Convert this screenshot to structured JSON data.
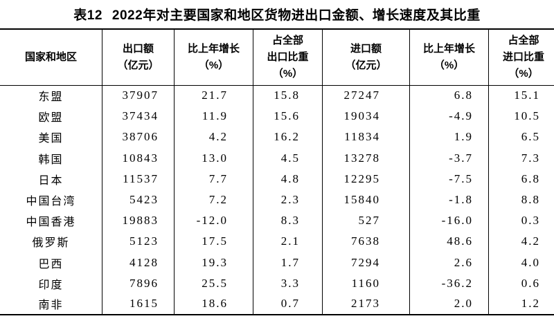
{
  "page": {
    "title_label": "表12",
    "title_text": "2022年对主要国家和地区货物进出口金额、增长速度及其比重"
  },
  "colors": {
    "text": "#000000",
    "background": "#ffffff",
    "border": "#000000"
  },
  "table": {
    "header": {
      "region": [
        "国家和地区"
      ],
      "export_value": [
        "出口额",
        "（亿元）"
      ],
      "export_growth": [
        "比上年增长",
        "（%）"
      ],
      "export_share": [
        "占全部",
        "出口比重",
        "（%）"
      ],
      "import_value": [
        "进口额",
        "（亿元）"
      ],
      "import_growth": [
        "比上年增长",
        "（%）"
      ],
      "import_share": [
        "占全部",
        "进口比重",
        "（%）"
      ]
    },
    "rows": [
      {
        "region": "东盟",
        "export_value": "37907",
        "export_growth": "21.7",
        "export_share": "15.8",
        "import_value": "27247",
        "import_growth": "6.8",
        "import_share": "15.1"
      },
      {
        "region": "欧盟",
        "export_value": "37434",
        "export_growth": "11.9",
        "export_share": "15.6",
        "import_value": "19034",
        "import_growth": "-4.9",
        "import_share": "10.5"
      },
      {
        "region": "美国",
        "export_value": "38706",
        "export_growth": "4.2",
        "export_share": "16.2",
        "import_value": "11834",
        "import_growth": "1.9",
        "import_share": "6.5"
      },
      {
        "region": "韩国",
        "export_value": "10843",
        "export_growth": "13.0",
        "export_share": "4.5",
        "import_value": "13278",
        "import_growth": "-3.7",
        "import_share": "7.3"
      },
      {
        "region": "日本",
        "export_value": "11537",
        "export_growth": "7.7",
        "export_share": "4.8",
        "import_value": "12295",
        "import_growth": "-7.5",
        "import_share": "6.8"
      },
      {
        "region": "中国台湾",
        "export_value": "5423",
        "export_growth": "7.2",
        "export_share": "2.3",
        "import_value": "15840",
        "import_growth": "-1.8",
        "import_share": "8.8"
      },
      {
        "region": "中国香港",
        "export_value": "19883",
        "export_growth": "-12.0",
        "export_share": "8.3",
        "import_value": "527",
        "import_growth": "-16.0",
        "import_share": "0.3"
      },
      {
        "region": "俄罗斯",
        "export_value": "5123",
        "export_growth": "17.5",
        "export_share": "2.1",
        "import_value": "7638",
        "import_growth": "48.6",
        "import_share": "4.2"
      },
      {
        "region": "巴西",
        "export_value": "4128",
        "export_growth": "19.3",
        "export_share": "1.7",
        "import_value": "7294",
        "import_growth": "2.6",
        "import_share": "4.0"
      },
      {
        "region": "印度",
        "export_value": "7896",
        "export_growth": "25.5",
        "export_share": "3.3",
        "import_value": "1160",
        "import_growth": "-36.2",
        "import_share": "0.6"
      },
      {
        "region": "南非",
        "export_value": "1615",
        "export_growth": "18.6",
        "export_share": "0.7",
        "import_value": "2173",
        "import_growth": "2.0",
        "import_share": "1.2"
      }
    ]
  }
}
